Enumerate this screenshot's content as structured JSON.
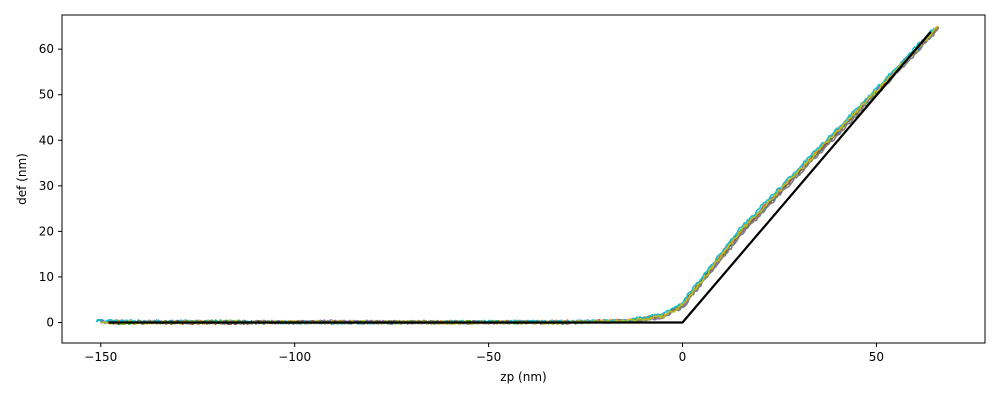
{
  "chart_data": {
    "type": "line",
    "title": "",
    "xlabel": "zp (nm)",
    "ylabel": "def (nm)",
    "xlim": [
      -160,
      78
    ],
    "ylim": [
      -4.5,
      67.5
    ],
    "grid": false,
    "legend": "none",
    "xticks": [
      {
        "value": -150,
        "label": "−150"
      },
      {
        "value": -100,
        "label": "−100"
      },
      {
        "value": -50,
        "label": "−50"
      },
      {
        "value": 0,
        "label": "0"
      },
      {
        "value": 50,
        "label": "50"
      }
    ],
    "yticks": [
      {
        "value": 0,
        "label": "0"
      },
      {
        "value": 10,
        "label": "10"
      },
      {
        "value": 20,
        "label": "20"
      },
      {
        "value": 30,
        "label": "30"
      },
      {
        "value": 40,
        "label": "40"
      },
      {
        "value": 50,
        "label": "50"
      },
      {
        "value": 60,
        "label": "60"
      }
    ],
    "series": [
      {
        "color": "#1f77b4",
        "offset": -0.8,
        "x": [
          -151,
          -120,
          -90,
          -60,
          -30,
          -15,
          -5,
          0,
          5,
          15,
          25,
          40,
          55,
          66
        ],
        "y": [
          0.3,
          0.1,
          0.0,
          0.0,
          0.1,
          0.3,
          1.4,
          3.8,
          9.0,
          19.5,
          28.5,
          41.6,
          54.8,
          64.8
        ]
      },
      {
        "color": "#ff7f0e",
        "offset": 0.6,
        "x": [
          -149,
          -120,
          -90,
          -60,
          -30,
          -15,
          -5,
          0,
          5,
          15,
          25,
          40,
          55,
          66
        ],
        "y": [
          0.2,
          0.0,
          0.1,
          0.0,
          0.2,
          0.4,
          1.6,
          4.2,
          9.6,
          20.4,
          29.2,
          42.3,
          55.5,
          65.0
        ]
      },
      {
        "color": "#2ca02c",
        "offset": 1.0,
        "x": [
          -148,
          -120,
          -90,
          -60,
          -30,
          -15,
          -5,
          0,
          5,
          15,
          25,
          40,
          55,
          65
        ],
        "y": [
          -0.1,
          0.2,
          0.0,
          0.1,
          0.0,
          0.3,
          1.3,
          4.0,
          9.3,
          20.0,
          28.8,
          41.9,
          55.0,
          64.2
        ]
      },
      {
        "color": "#9467bd",
        "offset": -0.3,
        "x": [
          -150,
          -120,
          -90,
          -60,
          -30,
          -15,
          -5,
          0,
          5,
          15,
          25,
          40,
          55,
          65
        ],
        "y": [
          0.1,
          0.1,
          0.2,
          0.0,
          0.1,
          0.2,
          1.2,
          3.6,
          8.8,
          19.8,
          28.9,
          42.0,
          55.2,
          64.5
        ]
      },
      {
        "color": "#8c564b",
        "offset": 0.2,
        "x": [
          -149,
          -120,
          -90,
          -60,
          -30,
          -15,
          -5,
          0,
          5,
          15,
          25,
          40,
          55,
          66
        ],
        "y": [
          0.0,
          -0.1,
          0.1,
          0.1,
          0.0,
          0.3,
          1.5,
          3.9,
          9.1,
          19.9,
          28.7,
          41.8,
          55.1,
          64.9
        ]
      },
      {
        "color": "#7f7f7f",
        "offset": 1.4,
        "x": [
          -148,
          -120,
          -90,
          -60,
          -30,
          -15,
          -5,
          0,
          5,
          15,
          25,
          40,
          55,
          66
        ],
        "y": [
          0.2,
          0.0,
          0.0,
          0.1,
          0.1,
          0.2,
          1.1,
          3.5,
          8.6,
          19.2,
          28.2,
          41.3,
          54.6,
          64.6
        ]
      },
      {
        "color": "#17becf",
        "offset": -1.2,
        "x": [
          -151,
          -120,
          -90,
          -60,
          -30,
          -15,
          -5,
          0,
          5,
          15,
          25,
          40,
          55,
          65
        ],
        "y": [
          0.3,
          0.1,
          0.0,
          0.1,
          0.2,
          0.4,
          1.7,
          4.3,
          9.8,
          20.6,
          29.4,
          42.5,
          55.7,
          64.7
        ]
      },
      {
        "color": "#bcbd22",
        "offset": 0.0,
        "x": [
          -150,
          -120,
          -90,
          -60,
          -30,
          -15,
          -5,
          0,
          5,
          15,
          25,
          40,
          55,
          66
        ],
        "y": [
          0.0,
          0.0,
          0.1,
          0.0,
          0.0,
          0.3,
          1.3,
          3.8,
          9.2,
          20.1,
          28.9,
          42.0,
          55.3,
          65.0
        ]
      },
      {
        "color": "#000000",
        "fit": true,
        "x": [
          -148,
          0,
          64
        ],
        "y": [
          0,
          0,
          63.8
        ]
      }
    ]
  }
}
